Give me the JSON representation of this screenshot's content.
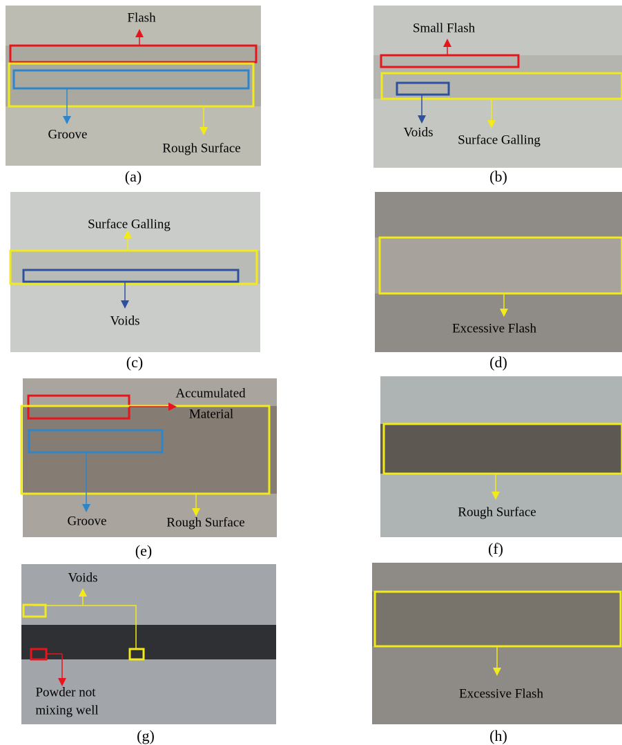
{
  "panels": [
    {
      "label": "(a)",
      "annotations": [
        "Flash",
        "Groove",
        "Rough Surface"
      ]
    },
    {
      "label": "(b)",
      "annotations": [
        "Small Flash",
        "Voids",
        "Surface Galling"
      ]
    },
    {
      "label": "(c)",
      "annotations": [
        "Surface Galling",
        "Voids"
      ]
    },
    {
      "label": "(d)",
      "annotations": [
        "Excessive Flash"
      ]
    },
    {
      "label": "(e)",
      "annotations": [
        "Accumulated",
        "Material",
        "Groove",
        "Rough Surface"
      ]
    },
    {
      "label": "(f)",
      "annotations": [
        "Rough Surface"
      ]
    },
    {
      "label": "(g)",
      "annotations": [
        "Voids",
        "Powder not",
        "mixing well"
      ]
    },
    {
      "label": "(h)",
      "annotations": [
        "Excessive Flash"
      ]
    }
  ]
}
